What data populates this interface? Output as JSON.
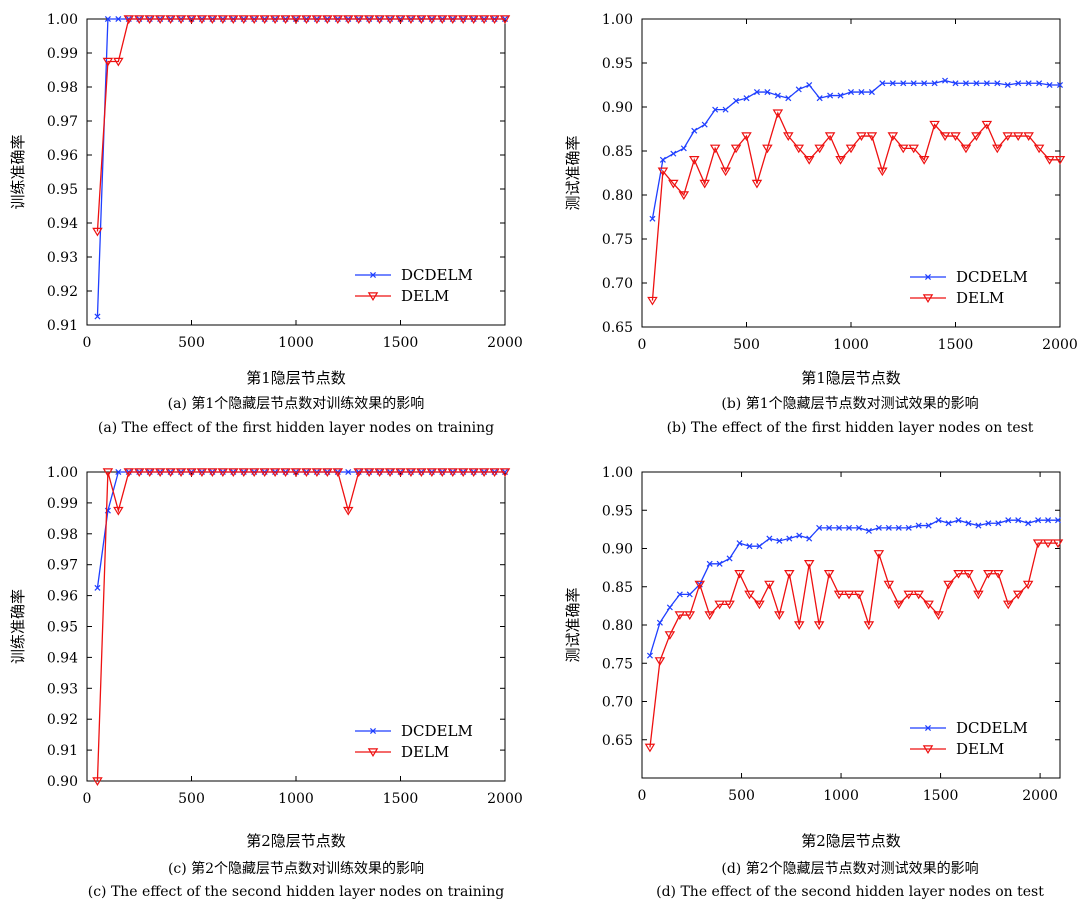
{
  "chart_data": [
    {
      "type": "line",
      "ylabel": "训练准确率",
      "xlabel": "第1隐层节点数",
      "caption_cn": "(a) 第1个隐藏层节点数对训练效果的影响",
      "caption_en": "(a) The effect of the first hidden layer nodes on training",
      "xlim": [
        0,
        2000
      ],
      "ylim": [
        0.91,
        1.0
      ],
      "xticks": [
        "0",
        "500",
        "1000",
        "1500",
        "2000"
      ],
      "yticks": [
        "0.91",
        "0.92",
        "0.93",
        "0.94",
        "0.95",
        "0.96",
        "0.97",
        "0.98",
        "0.99",
        "1.00"
      ],
      "legend_position": "bottom-right",
      "series": [
        {
          "name": "DCDELM",
          "color": "#1f3fff",
          "marker": "x",
          "x": [
            50,
            100,
            150,
            200,
            250,
            300,
            350,
            400,
            450,
            500,
            550,
            600,
            650,
            700,
            750,
            800,
            850,
            900,
            950,
            1000,
            1050,
            1100,
            1150,
            1200,
            1250,
            1300,
            1350,
            1400,
            1450,
            1500,
            1550,
            1600,
            1650,
            1700,
            1750,
            1800,
            1850,
            1900,
            1950,
            2000
          ],
          "y": [
            0.9125,
            1,
            1,
            1,
            1,
            1,
            1,
            1,
            1,
            1,
            1,
            1,
            1,
            1,
            1,
            1,
            1,
            1,
            1,
            1,
            1,
            1,
            1,
            1,
            1,
            1,
            1,
            1,
            1,
            1,
            1,
            1,
            1,
            1,
            1,
            1,
            1,
            1,
            1,
            1
          ]
        },
        {
          "name": "DELM",
          "color": "#ee1111",
          "marker": "triangle-down",
          "x": [
            50,
            100,
            150,
            200,
            250,
            300,
            350,
            400,
            450,
            500,
            550,
            600,
            650,
            700,
            750,
            800,
            850,
            900,
            950,
            1000,
            1050,
            1100,
            1150,
            1200,
            1250,
            1300,
            1350,
            1400,
            1450,
            1500,
            1550,
            1600,
            1650,
            1700,
            1750,
            1800,
            1850,
            1900,
            1950,
            2000
          ],
          "y": [
            0.9375,
            0.9875,
            0.9875,
            1,
            1,
            1,
            1,
            1,
            1,
            1,
            1,
            1,
            1,
            1,
            1,
            1,
            1,
            1,
            1,
            1,
            1,
            1,
            1,
            1,
            1,
            1,
            1,
            1,
            1,
            1,
            1,
            1,
            1,
            1,
            1,
            1,
            1,
            1,
            1,
            1
          ]
        }
      ]
    },
    {
      "type": "line",
      "ylabel": "测试准确率",
      "xlabel": "第1隐层节点数",
      "caption_cn": "(b) 第1个隐藏层节点数对测试效果的影响",
      "caption_en": "(b) The effect of the first hidden layer nodes on test",
      "xlim": [
        0,
        2000
      ],
      "ylim": [
        0.65,
        1.0
      ],
      "xticks": [
        "0",
        "500",
        "1000",
        "1500",
        "2000"
      ],
      "yticks": [
        "0.65",
        "0.70",
        "0.75",
        "0.80",
        "0.85",
        "0.90",
        "0.95",
        "1.00"
      ],
      "legend_position": "bottom-right",
      "series": [
        {
          "name": "DCDELM",
          "color": "#1f3fff",
          "marker": "x",
          "x": [
            50,
            100,
            150,
            200,
            250,
            300,
            350,
            400,
            450,
            500,
            550,
            600,
            650,
            700,
            750,
            800,
            850,
            900,
            950,
            1000,
            1050,
            1100,
            1150,
            1200,
            1250,
            1300,
            1350,
            1400,
            1450,
            1500,
            1550,
            1600,
            1650,
            1700,
            1750,
            1800,
            1850,
            1900,
            1950,
            2000
          ],
          "y": [
            0.773,
            0.84,
            0.847,
            0.853,
            0.873,
            0.88,
            0.897,
            0.897,
            0.907,
            0.91,
            0.917,
            0.917,
            0.913,
            0.91,
            0.92,
            0.925,
            0.91,
            0.913,
            0.913,
            0.917,
            0.917,
            0.917,
            0.927,
            0.927,
            0.927,
            0.927,
            0.927,
            0.927,
            0.93,
            0.927,
            0.927,
            0.927,
            0.927,
            0.927,
            0.925,
            0.927,
            0.927,
            0.927,
            0.925,
            0.925
          ]
        },
        {
          "name": "DELM",
          "color": "#ee1111",
          "marker": "triangle-down",
          "x": [
            50,
            100,
            150,
            200,
            250,
            300,
            350,
            400,
            450,
            500,
            550,
            600,
            650,
            700,
            750,
            800,
            850,
            900,
            950,
            1000,
            1050,
            1100,
            1150,
            1200,
            1250,
            1300,
            1350,
            1400,
            1450,
            1500,
            1550,
            1600,
            1650,
            1700,
            1750,
            1800,
            1850,
            1900,
            1950,
            2000
          ],
          "y": [
            0.68,
            0.827,
            0.813,
            0.8,
            0.84,
            0.813,
            0.853,
            0.827,
            0.853,
            0.867,
            0.813,
            0.853,
            0.893,
            0.867,
            0.853,
            0.84,
            0.853,
            0.867,
            0.84,
            0.853,
            0.867,
            0.867,
            0.827,
            0.867,
            0.853,
            0.853,
            0.84,
            0.88,
            0.867,
            0.867,
            0.853,
            0.867,
            0.88,
            0.853,
            0.867,
            0.867,
            0.867,
            0.853,
            0.84,
            0.84
          ]
        }
      ]
    },
    {
      "type": "line",
      "ylabel": "训练准确率",
      "xlabel": "第2隐层节点数",
      "caption_cn": "(c) 第2个隐藏层节点数对训练效果的影响",
      "caption_en": "(c) The effect of the second hidden layer nodes on training",
      "xlim": [
        0,
        2000
      ],
      "ylim": [
        0.9,
        1.0
      ],
      "xticks": [
        "0",
        "500",
        "1000",
        "1500",
        "2000"
      ],
      "yticks": [
        "0.90",
        "0.91",
        "0.92",
        "0.93",
        "0.94",
        "0.95",
        "0.96",
        "0.97",
        "0.98",
        "0.99",
        "1.00"
      ],
      "legend_position": "bottom-right",
      "series": [
        {
          "name": "DCDELM",
          "color": "#1f3fff",
          "marker": "x",
          "x": [
            50,
            100,
            150,
            200,
            250,
            300,
            350,
            400,
            450,
            500,
            550,
            600,
            650,
            700,
            750,
            800,
            850,
            900,
            950,
            1000,
            1050,
            1100,
            1150,
            1200,
            1250,
            1300,
            1350,
            1400,
            1450,
            1500,
            1550,
            1600,
            1650,
            1700,
            1750,
            1800,
            1850,
            1900,
            1950,
            2000
          ],
          "y": [
            0.9625,
            0.9875,
            1,
            1,
            1,
            1,
            1,
            1,
            1,
            1,
            1,
            1,
            1,
            1,
            1,
            1,
            1,
            1,
            1,
            1,
            1,
            1,
            1,
            1,
            1,
            1,
            1,
            1,
            1,
            1,
            1,
            1,
            1,
            1,
            1,
            1,
            1,
            1,
            1,
            1
          ]
        },
        {
          "name": "DELM",
          "color": "#ee1111",
          "marker": "triangle-down",
          "x": [
            50,
            100,
            150,
            200,
            250,
            300,
            350,
            400,
            450,
            500,
            550,
            600,
            650,
            700,
            750,
            800,
            850,
            900,
            950,
            1000,
            1050,
            1100,
            1150,
            1200,
            1250,
            1300,
            1350,
            1400,
            1450,
            1500,
            1550,
            1600,
            1650,
            1700,
            1750,
            1800,
            1850,
            1900,
            1950,
            2000
          ],
          "y": [
            0.9,
            1,
            0.9875,
            1,
            1,
            1,
            1,
            1,
            1,
            1,
            1,
            1,
            1,
            1,
            1,
            1,
            1,
            1,
            1,
            1,
            1,
            1,
            1,
            1,
            0.9875,
            1,
            1,
            1,
            1,
            1,
            1,
            1,
            1,
            1,
            1,
            1,
            1,
            1,
            1,
            1
          ]
        }
      ]
    },
    {
      "type": "line",
      "ylabel": "测试准确率",
      "xlabel": "第2隐层节点数",
      "caption_cn": "(d) 第2个隐藏层节点数对测试效果的影响",
      "caption_en": "(d) The effect of the second hidden layer nodes on test",
      "xlim": [
        0,
        2100
      ],
      "ylim": [
        0.6,
        1.0
      ],
      "xticks": [
        "0",
        "500",
        "1000",
        "1500",
        "2000"
      ],
      "xtick_values": [
        0,
        500,
        1000,
        1500,
        2000
      ],
      "yticks": [
        "0.65",
        "0.70",
        "0.75",
        "0.80",
        "0.85",
        "0.90",
        "0.95",
        "1.00"
      ],
      "ytick_values": [
        0.65,
        0.7,
        0.75,
        0.8,
        0.85,
        0.9,
        0.95,
        1.0
      ],
      "legend_position": "bottom-right",
      "series": [
        {
          "name": "DCDELM",
          "color": "#1f3fff",
          "marker": "x",
          "x": [
            40,
            90,
            140,
            190,
            240,
            290,
            340,
            390,
            440,
            490,
            540,
            590,
            640,
            690,
            740,
            790,
            840,
            890,
            940,
            990,
            1040,
            1090,
            1140,
            1190,
            1240,
            1290,
            1340,
            1390,
            1440,
            1490,
            1540,
            1590,
            1640,
            1690,
            1740,
            1790,
            1840,
            1890,
            1940,
            1990,
            2040,
            2090
          ],
          "y": [
            0.76,
            0.803,
            0.823,
            0.84,
            0.84,
            0.853,
            0.88,
            0.88,
            0.887,
            0.907,
            0.903,
            0.903,
            0.913,
            0.91,
            0.913,
            0.917,
            0.913,
            0.927,
            0.927,
            0.927,
            0.927,
            0.927,
            0.923,
            0.927,
            0.927,
            0.927,
            0.927,
            0.93,
            0.93,
            0.937,
            0.933,
            0.937,
            0.933,
            0.93,
            0.933,
            0.933,
            0.937,
            0.937,
            0.933,
            0.937,
            0.937,
            0.937
          ]
        },
        {
          "name": "DELM",
          "color": "#ee1111",
          "marker": "triangle-down",
          "x": [
            40,
            90,
            140,
            190,
            240,
            290,
            340,
            390,
            440,
            490,
            540,
            590,
            640,
            690,
            740,
            790,
            840,
            890,
            940,
            990,
            1040,
            1090,
            1140,
            1190,
            1240,
            1290,
            1340,
            1390,
            1440,
            1490,
            1540,
            1590,
            1640,
            1690,
            1740,
            1790,
            1840,
            1890,
            1940,
            1990,
            2040,
            2090
          ],
          "y": [
            0.64,
            0.753,
            0.787,
            0.813,
            0.813,
            0.853,
            0.813,
            0.827,
            0.827,
            0.867,
            0.84,
            0.827,
            0.853,
            0.813,
            0.867,
            0.8,
            0.88,
            0.8,
            0.867,
            0.84,
            0.84,
            0.84,
            0.8,
            0.893,
            0.853,
            0.827,
            0.84,
            0.84,
            0.827,
            0.813,
            0.853,
            0.867,
            0.867,
            0.84,
            0.867,
            0.867,
            0.827,
            0.84,
            0.853,
            0.907,
            0.907,
            0.907
          ]
        }
      ]
    }
  ]
}
